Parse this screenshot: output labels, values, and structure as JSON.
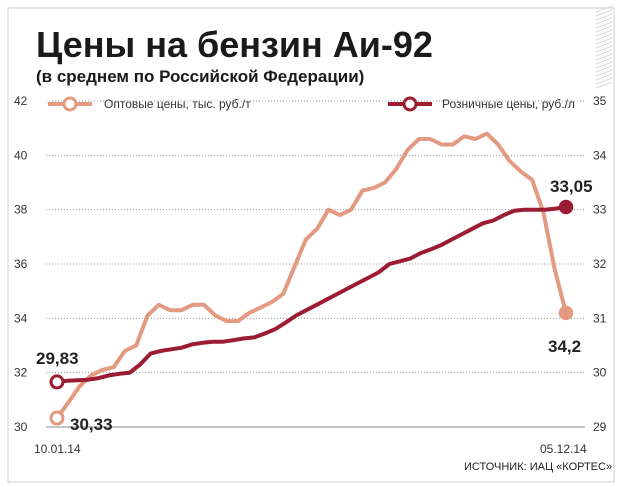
{
  "chart_data": {
    "type": "line",
    "title": "Цены на бензин Аи-92",
    "subtitle": "(в среднем по Российской Федерации)",
    "source": "ИСТОЧНИК: ИАЦ «КОРТЕС»",
    "x_start_label": "10.01.14",
    "x_end_label": "05.12.14",
    "y_left": {
      "min": 30,
      "max": 42,
      "ticks": [
        "30",
        "32",
        "34",
        "36",
        "38",
        "40",
        "42"
      ]
    },
    "y_right": {
      "min": 29,
      "max": 35,
      "ticks": [
        "29",
        "30",
        "31",
        "32",
        "33",
        "34",
        "35"
      ]
    },
    "grid": true,
    "legend_position": "top",
    "series": [
      {
        "name": "Оптовые цены, тыс. руб./т",
        "axis": "left",
        "color": "#e39a80",
        "values": [
          30.33,
          30.9,
          31.5,
          31.9,
          32.1,
          32.2,
          32.8,
          33.0,
          34.1,
          34.5,
          34.3,
          34.3,
          34.5,
          34.5,
          34.1,
          33.9,
          33.9,
          34.2,
          34.4,
          34.6,
          34.9,
          35.9,
          36.9,
          37.3,
          38.0,
          37.8,
          38.0,
          38.7,
          38.8,
          39.0,
          39.5,
          40.2,
          40.6,
          40.6,
          40.4,
          40.4,
          40.7,
          40.6,
          40.8,
          40.4,
          39.8,
          39.4,
          39.1,
          37.9,
          35.8,
          34.2
        ]
      },
      {
        "name": "Розничные цены, руб./л",
        "axis": "right",
        "color": "#9b1c33",
        "values": [
          29.83,
          29.85,
          29.86,
          29.87,
          29.9,
          29.95,
          29.98,
          30.0,
          30.15,
          30.35,
          30.4,
          30.43,
          30.46,
          30.52,
          30.55,
          30.57,
          30.57,
          30.6,
          30.63,
          30.65,
          30.72,
          30.8,
          30.92,
          31.05,
          31.15,
          31.25,
          31.35,
          31.45,
          31.55,
          31.65,
          31.75,
          31.85,
          32.0,
          32.05,
          32.1,
          32.2,
          32.27,
          32.35,
          32.45,
          32.55,
          32.65,
          32.75,
          32.8,
          32.9,
          32.98,
          33.0,
          33.0,
          33.0,
          33.02,
          33.05
        ]
      }
    ],
    "annotations": [
      {
        "text": "30,33",
        "series": 0,
        "point": "first"
      },
      {
        "text": "29,83",
        "series": 1,
        "point": "first"
      },
      {
        "text": "34,2",
        "series": 0,
        "point": "last"
      },
      {
        "text": "33,05",
        "series": 1,
        "point": "last"
      }
    ]
  }
}
